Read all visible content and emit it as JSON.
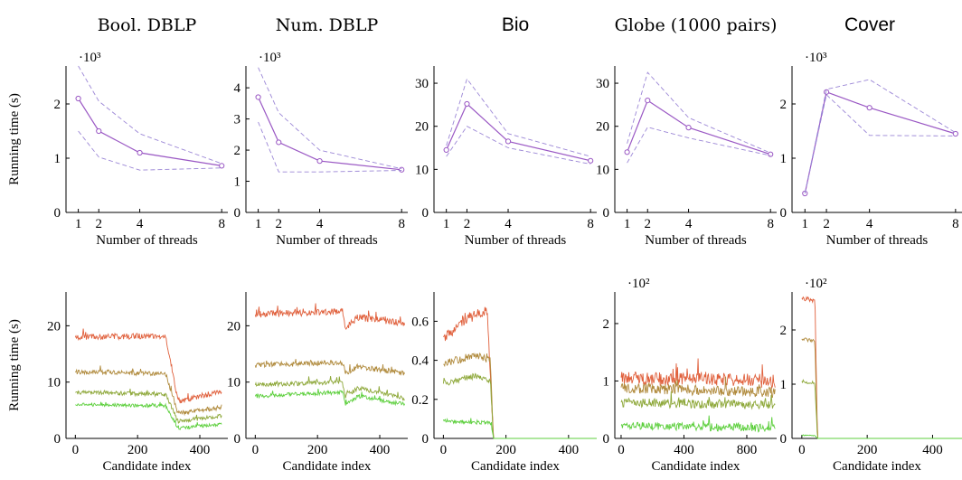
{
  "colors": {
    "mean_line": "#9a58c4",
    "band": "#9b86d6",
    "thread_1": "#e0603c",
    "thread_2": "#b08a3c",
    "thread_4": "#8ea83a",
    "thread_8": "#5ccf3c"
  },
  "chart_data": [
    {
      "type": "line",
      "title": "Bool. DBLP",
      "xlabel": "Number of threads",
      "ylabel": "Running time (s)",
      "multiplier": "·10³",
      "x": [
        1,
        2,
        4,
        8
      ],
      "xticks": [
        "1",
        "2",
        "4",
        "8"
      ],
      "yticks": [
        "0",
        "1",
        "2"
      ],
      "ylim": [
        0,
        2.7
      ],
      "xlim": [
        0.4,
        8.3
      ],
      "series": [
        {
          "role": "mean",
          "values": [
            2.1,
            1.5,
            1.1,
            0.86
          ]
        },
        {
          "role": "upper",
          "values": [
            2.7,
            2.05,
            1.45,
            0.9
          ]
        },
        {
          "role": "lower",
          "values": [
            1.5,
            1.02,
            0.78,
            0.82
          ]
        }
      ]
    },
    {
      "type": "line",
      "title": "Num. DBLP",
      "xlabel": "Number of threads",
      "multiplier": "·10³",
      "x": [
        1,
        2,
        4,
        8
      ],
      "xticks": [
        "1",
        "2",
        "4",
        "8"
      ],
      "yticks": [
        "0",
        "1",
        "2",
        "3",
        "4"
      ],
      "ylim": [
        0,
        4.7
      ],
      "xlim": [
        0.4,
        8.3
      ],
      "series": [
        {
          "role": "mean",
          "values": [
            3.7,
            2.25,
            1.65,
            1.37
          ]
        },
        {
          "role": "upper",
          "values": [
            4.65,
            3.2,
            2.0,
            1.4
          ]
        },
        {
          "role": "lower",
          "values": [
            2.9,
            1.3,
            1.3,
            1.35
          ]
        }
      ]
    },
    {
      "type": "line",
      "title": "Bio",
      "xlabel": "Number of threads",
      "x": [
        1,
        2,
        4,
        8
      ],
      "xticks": [
        "1",
        "2",
        "4",
        "8"
      ],
      "yticks": [
        "0",
        "10",
        "20",
        "30"
      ],
      "ylim": [
        0,
        34
      ],
      "xlim": [
        0.4,
        8.3
      ],
      "series": [
        {
          "role": "mean",
          "values": [
            14.5,
            25.2,
            16.5,
            12.0
          ]
        },
        {
          "role": "upper",
          "values": [
            15.5,
            31.0,
            18.3,
            13.0
          ]
        },
        {
          "role": "lower",
          "values": [
            13.0,
            20.0,
            15.0,
            11.2
          ]
        }
      ]
    },
    {
      "type": "line",
      "title": "Globe (1000 pairs)",
      "xlabel": "Number of threads",
      "x": [
        1,
        2,
        4,
        8
      ],
      "xticks": [
        "1",
        "2",
        "4",
        "8"
      ],
      "yticks": [
        "0",
        "10",
        "20",
        "30"
      ],
      "ylim": [
        0,
        34
      ],
      "xlim": [
        0.4,
        8.3
      ],
      "series": [
        {
          "role": "mean",
          "values": [
            14.0,
            26.0,
            19.7,
            13.5
          ]
        },
        {
          "role": "upper",
          "values": [
            16.0,
            32.5,
            22.0,
            13.8
          ]
        },
        {
          "role": "lower",
          "values": [
            11.5,
            19.8,
            17.3,
            13.2
          ]
        }
      ]
    },
    {
      "type": "line",
      "title": "Cover",
      "xlabel": "Number of threads",
      "multiplier": "·10³",
      "x": [
        1,
        2,
        4,
        8
      ],
      "xticks": [
        "1",
        "2",
        "4",
        "8"
      ],
      "yticks": [
        "0",
        "1",
        "2"
      ],
      "ylim": [
        0,
        2.7
      ],
      "xlim": [
        0.4,
        8.3
      ],
      "series": [
        {
          "role": "mean",
          "values": [
            0.35,
            2.22,
            1.93,
            1.45
          ]
        },
        {
          "role": "upper",
          "values": [
            0.35,
            2.27,
            2.45,
            1.47
          ]
        },
        {
          "role": "lower",
          "values": [
            0.35,
            2.17,
            1.42,
            1.41
          ]
        }
      ]
    },
    {
      "type": "line",
      "xlabel": "Candidate index",
      "ylabel": "Running time (s)",
      "xticks": [
        "0",
        "200",
        "400"
      ],
      "xtick_values": [
        0,
        200,
        400
      ],
      "yticks": [
        "0",
        "10",
        "20"
      ],
      "ylim": [
        0,
        26
      ],
      "xlim": [
        -30,
        490
      ],
      "series": [
        {
          "level": [
            [
              0,
              18.0
            ],
            [
              290,
              18.2
            ],
            [
              330,
              6.5
            ],
            [
              470,
              8.5
            ]
          ],
          "noise": 0.5,
          "color_key": "thread_1"
        },
        {
          "level": [
            [
              0,
              11.8
            ],
            [
              290,
              11.5
            ],
            [
              330,
              4.5
            ],
            [
              470,
              5.5
            ]
          ],
          "noise": 0.4,
          "color_key": "thread_2"
        },
        {
          "level": [
            [
              0,
              8.2
            ],
            [
              290,
              7.8
            ],
            [
              330,
              3.0
            ],
            [
              470,
              4.0
            ]
          ],
          "noise": 0.35,
          "color_key": "thread_4"
        },
        {
          "level": [
            [
              0,
              6.0
            ],
            [
              290,
              5.8
            ],
            [
              330,
              1.8
            ],
            [
              470,
              2.5
            ]
          ],
          "noise": 0.3,
          "color_key": "thread_8"
        }
      ]
    },
    {
      "type": "line",
      "xlabel": "Candidate index",
      "xticks": [
        "0",
        "200",
        "400"
      ],
      "xtick_values": [
        0,
        200,
        400
      ],
      "yticks": [
        "0",
        "10",
        "20"
      ],
      "ylim": [
        0,
        26
      ],
      "xlim": [
        -30,
        490
      ],
      "series": [
        {
          "level": [
            [
              0,
              22.0
            ],
            [
              280,
              22.5
            ],
            [
              290,
              19.5
            ],
            [
              330,
              21.5
            ],
            [
              480,
              20.5
            ]
          ],
          "noise": 0.6,
          "color_key": "thread_1"
        },
        {
          "level": [
            [
              0,
              13.0
            ],
            [
              280,
              13.5
            ],
            [
              290,
              11.5
            ],
            [
              330,
              12.8
            ],
            [
              480,
              11.5
            ]
          ],
          "noise": 0.45,
          "color_key": "thread_2"
        },
        {
          "level": [
            [
              0,
              9.5
            ],
            [
              280,
              10.0
            ],
            [
              290,
              7.5
            ],
            [
              330,
              9.0
            ],
            [
              480,
              7.0
            ]
          ],
          "noise": 0.4,
          "color_key": "thread_4"
        },
        {
          "level": [
            [
              0,
              7.5
            ],
            [
              280,
              8.2
            ],
            [
              290,
              6.0
            ],
            [
              330,
              7.5
            ],
            [
              480,
              6.0
            ]
          ],
          "noise": 0.35,
          "color_key": "thread_8"
        }
      ]
    },
    {
      "type": "line",
      "xlabel": "Candidate index",
      "xticks": [
        "0",
        "200",
        "400"
      ],
      "xtick_values": [
        0,
        200,
        400
      ],
      "yticks": [
        "0",
        "0.2",
        "0.4",
        "0.6"
      ],
      "ylim": [
        0,
        0.75
      ],
      "xlim": [
        -30,
        490
      ],
      "series": [
        {
          "level": [
            [
              0,
              0.52
            ],
            [
              80,
              0.62
            ],
            [
              140,
              0.66
            ],
            [
              160,
              0.0
            ],
            [
              490,
              0.0
            ]
          ],
          "noise": 0.03,
          "color_key": "thread_1"
        },
        {
          "level": [
            [
              0,
              0.38
            ],
            [
              100,
              0.43
            ],
            [
              150,
              0.4
            ],
            [
              160,
              0.0
            ],
            [
              490,
              0.0
            ]
          ],
          "noise": 0.02,
          "color_key": "thread_2"
        },
        {
          "level": [
            [
              0,
              0.28
            ],
            [
              100,
              0.32
            ],
            [
              150,
              0.3
            ],
            [
              160,
              0.0
            ],
            [
              490,
              0.0
            ]
          ],
          "noise": 0.015,
          "color_key": "thread_4"
        },
        {
          "level": [
            [
              0,
              0.09
            ],
            [
              150,
              0.08
            ],
            [
              160,
              0.0
            ],
            [
              490,
              0.0
            ]
          ],
          "noise": 0.01,
          "color_key": "thread_8"
        }
      ]
    },
    {
      "type": "line",
      "xlabel": "Candidate index",
      "multiplier": "·10²",
      "xticks": [
        "0",
        "400",
        "800"
      ],
      "xtick_values": [
        0,
        400,
        800
      ],
      "yticks": [
        "0",
        "1",
        "2"
      ],
      "ylim": [
        0,
        2.55
      ],
      "xlim": [
        -40,
        990
      ],
      "series": [
        {
          "level": [
            [
              0,
              1.05
            ],
            [
              980,
              1.0
            ]
          ],
          "noise": 0.12,
          "color_key": "thread_1"
        },
        {
          "level": [
            [
              0,
              0.88
            ],
            [
              980,
              0.8
            ]
          ],
          "noise": 0.09,
          "color_key": "thread_2"
        },
        {
          "level": [
            [
              0,
              0.62
            ],
            [
              980,
              0.58
            ]
          ],
          "noise": 0.08,
          "color_key": "thread_4"
        },
        {
          "level": [
            [
              0,
              0.22
            ],
            [
              980,
              0.18
            ]
          ],
          "noise": 0.07,
          "color_key": "thread_8"
        }
      ]
    },
    {
      "type": "line",
      "xlabel": "Candidate index",
      "multiplier": "·10²",
      "xticks": [
        "0",
        "200",
        "400"
      ],
      "xtick_values": [
        0,
        200,
        400
      ],
      "yticks": [
        "0",
        "1",
        "2"
      ],
      "ylim": [
        0,
        2.7
      ],
      "xlim": [
        -30,
        490
      ],
      "series": [
        {
          "level": [
            [
              0,
              2.58
            ],
            [
              40,
              2.55
            ],
            [
              48,
              0.0
            ],
            [
              490,
              0.0
            ]
          ],
          "noise": 0.04,
          "color_key": "thread_1"
        },
        {
          "level": [
            [
              0,
              1.83
            ],
            [
              40,
              1.8
            ],
            [
              48,
              0.0
            ],
            [
              490,
              0.0
            ]
          ],
          "noise": 0.03,
          "color_key": "thread_2"
        },
        {
          "level": [
            [
              0,
              1.05
            ],
            [
              40,
              1.0
            ],
            [
              48,
              0.0
            ],
            [
              490,
              0.0
            ]
          ],
          "noise": 0.02,
          "color_key": "thread_4"
        },
        {
          "level": [
            [
              0,
              0.06
            ],
            [
              40,
              0.05
            ],
            [
              48,
              0.0
            ],
            [
              490,
              0.0
            ]
          ],
          "noise": 0.01,
          "color_key": "thread_8"
        }
      ]
    }
  ]
}
